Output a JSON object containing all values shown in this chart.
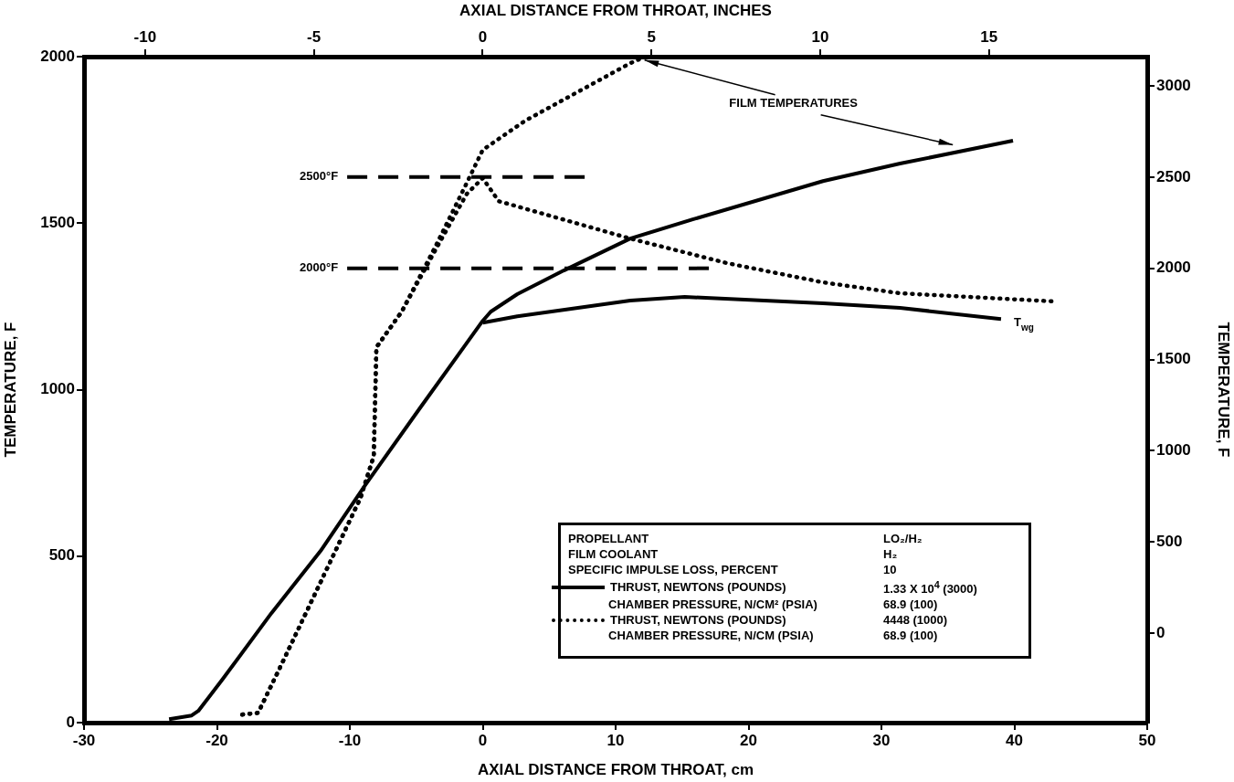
{
  "chart_data": {
    "type": "line",
    "xlabel": "AXIAL DISTANCE FROM THROAT, cm",
    "x2label": "AXIAL DISTANCE FROM THROAT, INCHES",
    "ylabel": "TEMPERATURE, F",
    "y2label": "TEMPERATURE, F",
    "xlim": [
      -30,
      50
    ],
    "xticks": [
      -30,
      -20,
      -10,
      0,
      10,
      20,
      30,
      40,
      50
    ],
    "x2lim": [
      -11.81,
      19.69
    ],
    "x2ticks": [
      -10,
      -5,
      0,
      5,
      10,
      15
    ],
    "ylim": [
      0,
      2000
    ],
    "yticks": [
      0,
      500,
      1000,
      1500,
      2000
    ],
    "y2lim": [
      -490,
      3160
    ],
    "y2ticks": [
      0,
      500,
      1000,
      1500,
      2000,
      2500,
      3000
    ],
    "grid": false,
    "legend": "bottom right",
    "marker": "none",
    "series": [
      {
        "name": "THRUST, NEWTONS (POUNDS)",
        "color": "#000000",
        "axis": "y2",
        "line_style": "solid",
        "x": [
          -23.6,
          -21.9,
          -21.4,
          -19.6,
          -15.9,
          -12.2,
          -8.8,
          -4.8,
          0,
          0.6,
          2.6,
          6.1,
          11.1,
          15.8,
          25.6,
          31.4,
          39.9
        ],
        "values": [
          -471,
          -451,
          -426,
          -255,
          110,
          451,
          816,
          1226,
          1712,
          1762,
          1858,
          1988,
          2163,
          2268,
          2478,
          2574,
          2699
        ]
      },
      {
        "name": "THRUST, NEWTONS (POUNDS)",
        "color": "#000000",
        "axis": "y2",
        "line_style": "dotted",
        "x": [
          -18.1,
          -16.9,
          -15.2,
          -12.2,
          -9.2,
          -8.2,
          -8.0,
          -6.1,
          -3.5,
          -1.2,
          0,
          3.2,
          11.1,
          11.9
        ],
        "values": [
          -446,
          -436,
          -180,
          280,
          741,
          971,
          1567,
          1762,
          2128,
          2468,
          2649,
          2809,
          3124,
          3149
        ]
      },
      {
        "color": "#000000",
        "axis": "y2",
        "line_style": "solid",
        "x": [
          0,
          2.6,
          11.1,
          15.2,
          25.6,
          31.4,
          39.0
        ],
        "values": [
          1702,
          1737,
          1823,
          1843,
          1808,
          1783,
          1722
        ]
      },
      {
        "color": "#000000",
        "axis": "y2",
        "line_style": "dotted",
        "x": [
          -18.1,
          -16.9,
          -15.2,
          -12.2,
          -9.2,
          -8.2,
          -8.0,
          -6.1,
          -3.5,
          -1.2,
          0,
          1.2,
          11.1,
          18.4,
          25.6,
          31.4,
          43.1
        ],
        "values": [
          -446,
          -436,
          -180,
          280,
          741,
          971,
          1567,
          1762,
          2108,
          2408,
          2494,
          2368,
          2163,
          2028,
          1923,
          1863,
          1818
        ]
      },
      {
        "color": "#000000",
        "axis": "y2",
        "line_style": "dashed",
        "x": [
          -10.2,
          7.7
        ],
        "values": [
          2500,
          2500
        ]
      },
      {
        "color": "#000000",
        "axis": "y2",
        "line_style": "dashed",
        "x": [
          -10.2,
          17.7
        ],
        "values": [
          2000,
          2000
        ]
      }
    ],
    "annotations": [
      "PROPELLANT",
      "LO₂/H₂",
      "FILM COOLANT",
      "H₂",
      "SPECIFIC IMPULSE LOSS, PERCENT",
      "10",
      "1.33 X 10$^{4}$ (3000)",
      "CHAMBER PRESSURE, N/CM² (PSIA)",
      "68.9 (100)",
      "4448 (1000)",
      "CHAMBER PRESSURE, N/CM (PSIA)",
      "68.9 (100)",
      {
        "text": "FILM TEMPERATURES",
        "x": 11.9,
        "y": 1995
      },
      "T$_{wg}$",
      "2500°F",
      "2000°F"
    ]
  }
}
